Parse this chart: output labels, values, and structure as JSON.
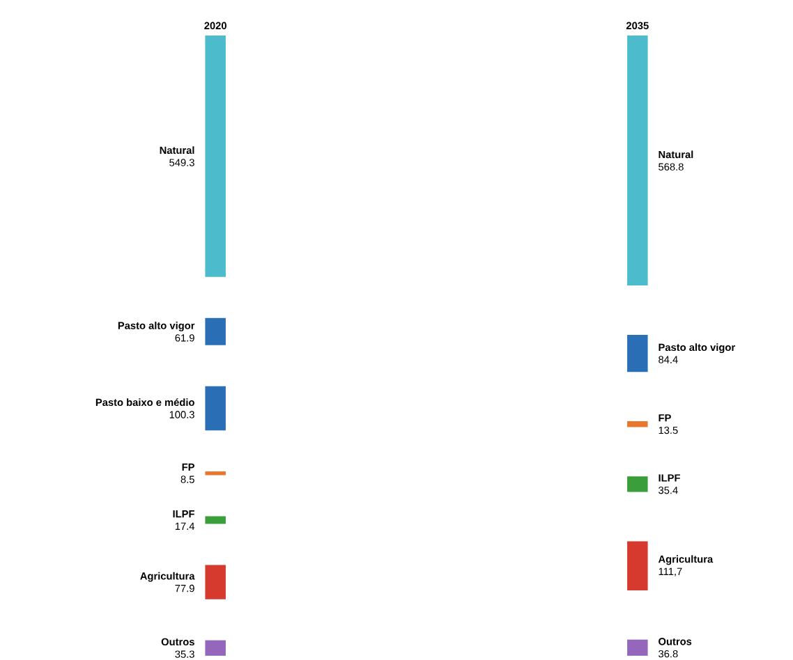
{
  "chart_data": {
    "type": "other",
    "categories": [
      "Natural",
      "Pasto alto vigor",
      "Pasto baixo e médio",
      "FP",
      "ILPF",
      "Agricultura",
      "Outros"
    ],
    "colors": [
      "#4cbccc",
      "#2a6fb5",
      "#2a6fb5",
      "#e8762d",
      "#3a9e3a",
      "#d63a2f",
      "#9467bd"
    ],
    "series": [
      {
        "name": "2020",
        "values": [
          549.3,
          61.9,
          100.3,
          8.5,
          17.4,
          77.9,
          35.3
        ],
        "value_labels": [
          "549.3",
          "61.9",
          "100.3",
          "8.5",
          "17.4",
          "77.9",
          "35.3"
        ]
      },
      {
        "name": "2035",
        "values": [
          568.8,
          84.4,
          null,
          13.5,
          35.4,
          111.7,
          36.8
        ],
        "value_labels": [
          "568.8",
          "84.4",
          null,
          "13.5",
          "35.4",
          "111,7",
          "36.8"
        ]
      }
    ]
  }
}
